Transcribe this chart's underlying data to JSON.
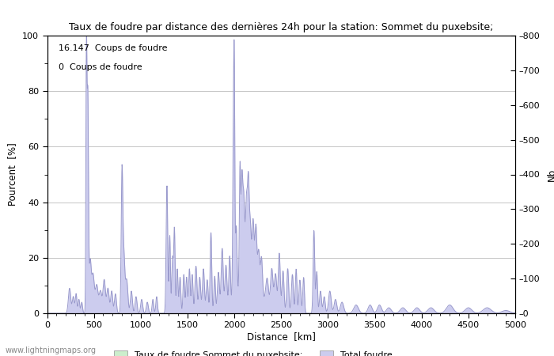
{
  "title": "Taux de foudre par distance des dernières 24h pour la station: Sommet du puxebsite;",
  "xlabel": "Distance  [km]",
  "ylabel_left": "Pourcent  [%]",
  "ylabel_right": "Nb",
  "annotation1": "16.147  Coups de foudre",
  "annotation2": "0  Coups de foudre",
  "legend1": "Taux de foudre Sommet du puxebsite;",
  "legend2": "Total foudre",
  "watermark": "www.lightningmaps.org",
  "xlim": [
    0,
    5000
  ],
  "ylim_left": [
    0,
    100
  ],
  "ylim_right": [
    0,
    800
  ],
  "yticks_left": [
    0,
    20,
    40,
    60,
    80,
    100
  ],
  "yticks_right": [
    0,
    100,
    200,
    300,
    400,
    500,
    600,
    700,
    800
  ],
  "xticks": [
    0,
    500,
    1000,
    1500,
    2000,
    2500,
    3000,
    3500,
    4000,
    4500,
    5000
  ],
  "bg_color": "#ffffff",
  "line_color": "#9999cc",
  "fill_blue_color": "#ccccee",
  "fill_green_color": "#cceecc",
  "grid_color": "#bbbbbb",
  "tick_color": "#555555",
  "label_color": "#333333"
}
